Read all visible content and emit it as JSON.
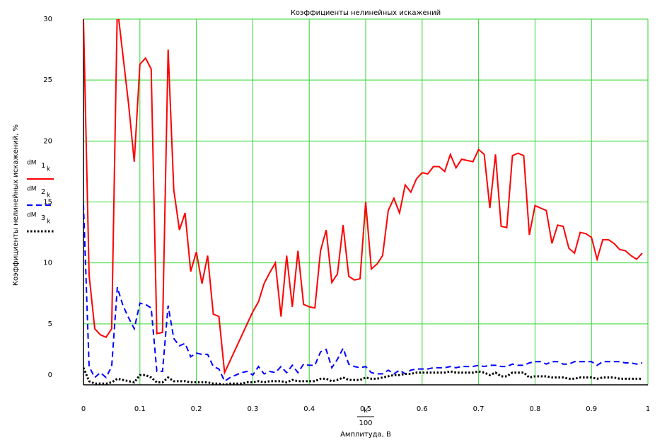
{
  "chart_data": {
    "type": "line",
    "title": "Коэффициенты нелинейных искажений",
    "ylabel": "Коэффициенты нелинейных искажений, %",
    "xlabel_fraction": {
      "numerator": "k",
      "denominator": "100"
    },
    "xlabel": "Амплитуда, В",
    "xlim": [
      0,
      1
    ],
    "ylim": [
      0,
      30
    ],
    "xticks": [
      0,
      0.1,
      0.2,
      0.3,
      0.4,
      0.5,
      0.6,
      0.7,
      0.8,
      0.9,
      1
    ],
    "yticks": [
      0,
      5,
      10,
      15,
      20,
      25,
      30
    ],
    "grid": true,
    "grid_color": "#2fd62f",
    "legend": "left",
    "x": [
      0,
      0.01,
      0.02,
      0.03,
      0.04,
      0.05,
      0.06,
      0.07,
      0.08,
      0.09,
      0.1,
      0.11,
      0.12,
      0.13,
      0.14,
      0.15,
      0.16,
      0.17,
      0.18,
      0.19,
      0.2,
      0.21,
      0.22,
      0.23,
      0.24,
      0.25,
      0.26,
      0.27,
      0.28,
      0.29,
      0.3,
      0.31,
      0.32,
      0.33,
      0.34,
      0.35,
      0.36,
      0.37,
      0.38,
      0.39,
      0.4,
      0.41,
      0.42,
      0.43,
      0.44,
      0.45,
      0.46,
      0.47,
      0.48,
      0.49,
      0.5,
      0.51,
      0.52,
      0.53,
      0.54,
      0.55,
      0.56,
      0.57,
      0.58,
      0.59,
      0.6,
      0.61,
      0.62,
      0.63,
      0.64,
      0.65,
      0.66,
      0.67,
      0.68,
      0.69,
      0.7,
      0.71,
      0.72,
      0.73,
      0.74,
      0.75,
      0.76,
      0.77,
      0.78,
      0.79,
      0.8,
      0.81,
      0.82,
      0.83,
      0.84,
      0.85,
      0.86,
      0.87,
      0.88,
      0.89,
      0.9,
      0.91,
      0.92,
      0.93,
      0.94,
      0.95,
      0.96,
      0.97,
      0.98,
      0.99
    ],
    "series": [
      {
        "name": "dM",
        "subscript": "1",
        "sub_index": "k",
        "color": "#ff0000",
        "style": "solid",
        "values": [
          30,
          9,
          4.6,
          4.1,
          3.9,
          4.6,
          31,
          27,
          23,
          18.3,
          26.3,
          26.8,
          25.9,
          4.2,
          4.3,
          27.5,
          16,
          12.7,
          14.1,
          9.3,
          10.9,
          8.3,
          10.6,
          5.8,
          5.6,
          1,
          2,
          3,
          4,
          5,
          6,
          6.8,
          8.3,
          9.2,
          10,
          5.6,
          10.6,
          6.4,
          11,
          6.6,
          6.4,
          6.3,
          11,
          12.7,
          8.4,
          9.1,
          13.1,
          8.9,
          8.6,
          8.7,
          15,
          9.5,
          9.9,
          10.6,
          14.3,
          15.3,
          14.1,
          16.4,
          15.8,
          16.9,
          17.4,
          17.3,
          17.9,
          17.9,
          17.5,
          18.9,
          17.8,
          18.5,
          18.4,
          18.3,
          19.3,
          18.9,
          14.5,
          18.9,
          13,
          12.9,
          18.8,
          19,
          18.8,
          12.3,
          14.7,
          14.5,
          14.3,
          11.6,
          13.1,
          13,
          11.2,
          10.8,
          12.5,
          12.4,
          12.1,
          10.3,
          11.9,
          11.9,
          11.6,
          11.1,
          11,
          10.6,
          10.3,
          10.8
        ]
      },
      {
        "name": "dM",
        "subscript": "2",
        "sub_index": "k",
        "color": "#0000ff",
        "style": "dashed",
        "values": [
          14.8,
          1.5,
          0.6,
          1,
          0.6,
          1.5,
          8,
          6.5,
          5.5,
          4.6,
          6.7,
          6.6,
          6.3,
          1.1,
          1.1,
          6.5,
          3.8,
          3.2,
          3.4,
          2.3,
          2.6,
          2.5,
          2.5,
          1.5,
          1.3,
          0.3,
          0.6,
          0.8,
          1,
          1.1,
          0.8,
          1.5,
          0.9,
          1.1,
          1,
          1.5,
          1,
          1.6,
          1,
          1.7,
          1.6,
          1.6,
          2.7,
          2.9,
          1.4,
          2.1,
          3,
          1.7,
          1.5,
          1.4,
          1.5,
          1,
          0.9,
          0.9,
          1.2,
          0.9,
          1.2,
          0.9,
          1.2,
          1.3,
          1.3,
          1.3,
          1.4,
          1.4,
          1.4,
          1.5,
          1.4,
          1.5,
          1.5,
          1.5,
          1.6,
          1.5,
          1.6,
          1.6,
          1.5,
          1.5,
          1.7,
          1.6,
          1.6,
          1.8,
          1.9,
          1.9,
          1.7,
          1.9,
          1.9,
          1.7,
          1.7,
          1.9,
          1.9,
          1.9,
          1.9,
          1.6,
          1.9,
          1.9,
          1.9,
          1.9,
          1.8,
          1.8,
          1.7,
          1.8
        ]
      },
      {
        "name": "dM",
        "subscript": "3",
        "sub_index": "k",
        "color": "#000000",
        "style": "dotted",
        "values": [
          1.4,
          0.3,
          0.1,
          0.1,
          0.1,
          0.2,
          0.5,
          0.4,
          0.3,
          0.2,
          0.8,
          0.8,
          0.6,
          0.2,
          0.2,
          0.6,
          0.3,
          0.3,
          0.3,
          0.2,
          0.2,
          0.2,
          0.2,
          0.1,
          0.1,
          0,
          0.1,
          0.1,
          0.1,
          0.2,
          0.2,
          0.3,
          0.2,
          0.3,
          0.3,
          0.3,
          0.2,
          0.4,
          0.3,
          0.3,
          0.3,
          0.3,
          0.5,
          0.5,
          0.3,
          0.4,
          0.6,
          0.4,
          0.4,
          0.4,
          0.6,
          0.5,
          0.5,
          0.6,
          0.7,
          0.8,
          0.8,
          0.9,
          0.9,
          1,
          1,
          1,
          1,
          1,
          1,
          1.1,
          1,
          1,
          1,
          1,
          1.1,
          1,
          0.8,
          1,
          0.7,
          0.7,
          1,
          1,
          1,
          0.6,
          0.7,
          0.7,
          0.7,
          0.6,
          0.6,
          0.6,
          0.5,
          0.5,
          0.6,
          0.6,
          0.6,
          0.5,
          0.6,
          0.6,
          0.6,
          0.5,
          0.5,
          0.5,
          0.5,
          0.5
        ]
      }
    ]
  }
}
